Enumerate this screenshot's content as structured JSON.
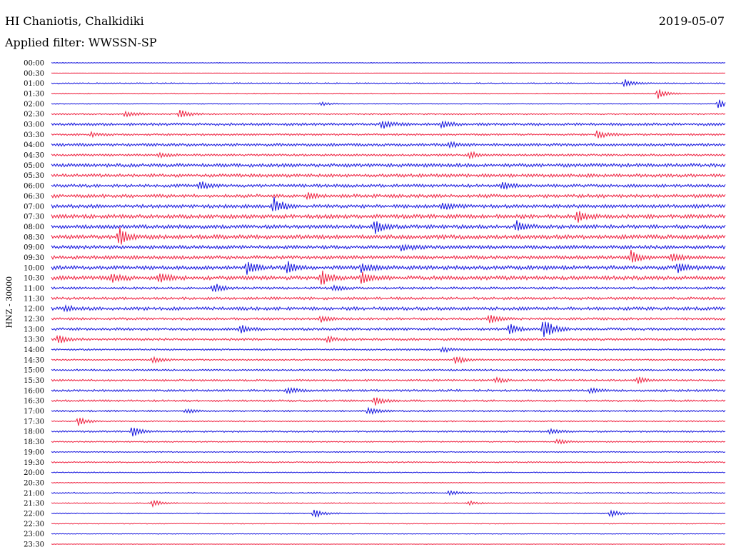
{
  "header": {
    "station": "HI Chaniotis, Chalkidiki",
    "date": "2019-05-07",
    "filter": "Applied filter: WWSSN-SP"
  },
  "chart_data": {
    "type": "line",
    "subtype": "helicorder",
    "ylabel": "HNZ - 30000",
    "row_labels": [
      "00:00",
      "00:30",
      "01:00",
      "01:30",
      "02:00",
      "02:30",
      "03:00",
      "03:30",
      "04:00",
      "04:30",
      "05:00",
      "05:30",
      "06:00",
      "06:30",
      "07:00",
      "07:30",
      "08:00",
      "08:30",
      "09:00",
      "09:30",
      "10:00",
      "10:30",
      "11:00",
      "11:30",
      "12:00",
      "12:30",
      "13:00",
      "13:30",
      "14:00",
      "14:30",
      "15:00",
      "15:30",
      "16:00",
      "16:30",
      "17:00",
      "17:30",
      "18:00",
      "18:30",
      "19:00",
      "19:30",
      "20:00",
      "20:30",
      "21:00",
      "21:30",
      "22:00",
      "22:30",
      "23:00",
      "23:30"
    ],
    "row_noise": [
      0.3,
      0.1,
      0.6,
      0.5,
      0.4,
      0.7,
      1.2,
      0.9,
      1.3,
      1.0,
      1.6,
      1.5,
      1.4,
      1.6,
      1.6,
      1.8,
      1.7,
      1.9,
      1.6,
      1.6,
      1.8,
      1.8,
      1.1,
      1.2,
      1.5,
      1.1,
      1.2,
      1.1,
      0.8,
      0.7,
      0.8,
      0.9,
      1.0,
      0.9,
      0.8,
      0.6,
      0.8,
      0.6,
      0.5,
      0.6,
      0.5,
      0.4,
      0.6,
      0.5,
      0.5,
      0.4,
      0.3,
      0.2
    ],
    "events": [
      {
        "row": 2,
        "t": 0.85,
        "amp": 6
      },
      {
        "row": 3,
        "t": 0.9,
        "amp": 7
      },
      {
        "row": 4,
        "t": 0.4,
        "amp": 3
      },
      {
        "row": 4,
        "t": 0.99,
        "amp": 6
      },
      {
        "row": 5,
        "t": 0.11,
        "amp": 5
      },
      {
        "row": 5,
        "t": 0.19,
        "amp": 6
      },
      {
        "row": 6,
        "t": 0.49,
        "amp": 7
      },
      {
        "row": 6,
        "t": 0.58,
        "amp": 5
      },
      {
        "row": 7,
        "t": 0.81,
        "amp": 7
      },
      {
        "row": 7,
        "t": 0.06,
        "amp": 3
      },
      {
        "row": 8,
        "t": 0.59,
        "amp": 4
      },
      {
        "row": 9,
        "t": 0.16,
        "amp": 3
      },
      {
        "row": 9,
        "t": 0.62,
        "amp": 5
      },
      {
        "row": 12,
        "t": 0.22,
        "amp": 6
      },
      {
        "row": 12,
        "t": 0.67,
        "amp": 6
      },
      {
        "row": 13,
        "t": 0.38,
        "amp": 4
      },
      {
        "row": 14,
        "t": 0.33,
        "amp": 12
      },
      {
        "row": 14,
        "t": 0.58,
        "amp": 5
      },
      {
        "row": 15,
        "t": 0.78,
        "amp": 9
      },
      {
        "row": 16,
        "t": 0.48,
        "amp": 10
      },
      {
        "row": 16,
        "t": 0.69,
        "amp": 8
      },
      {
        "row": 17,
        "t": 0.1,
        "amp": 13
      },
      {
        "row": 18,
        "t": 0.52,
        "amp": 5
      },
      {
        "row": 19,
        "t": 0.86,
        "amp": 9
      },
      {
        "row": 19,
        "t": 0.92,
        "amp": 6
      },
      {
        "row": 20,
        "t": 0.29,
        "amp": 9
      },
      {
        "row": 20,
        "t": 0.35,
        "amp": 8
      },
      {
        "row": 20,
        "t": 0.46,
        "amp": 7
      },
      {
        "row": 20,
        "t": 0.93,
        "amp": 6
      },
      {
        "row": 21,
        "t": 0.09,
        "amp": 7
      },
      {
        "row": 21,
        "t": 0.16,
        "amp": 8
      },
      {
        "row": 21,
        "t": 0.4,
        "amp": 10
      },
      {
        "row": 21,
        "t": 0.46,
        "amp": 8
      },
      {
        "row": 22,
        "t": 0.24,
        "amp": 7
      },
      {
        "row": 22,
        "t": 0.42,
        "amp": 4
      },
      {
        "row": 24,
        "t": 0.02,
        "amp": 4
      },
      {
        "row": 25,
        "t": 0.4,
        "amp": 4
      },
      {
        "row": 25,
        "t": 0.65,
        "amp": 6
      },
      {
        "row": 26,
        "t": 0.28,
        "amp": 6
      },
      {
        "row": 26,
        "t": 0.68,
        "amp": 7
      },
      {
        "row": 26,
        "t": 0.73,
        "amp": 16
      },
      {
        "row": 27,
        "t": 0.01,
        "amp": 6
      },
      {
        "row": 27,
        "t": 0.41,
        "amp": 4
      },
      {
        "row": 28,
        "t": 0.58,
        "amp": 4
      },
      {
        "row": 29,
        "t": 0.15,
        "amp": 5
      },
      {
        "row": 29,
        "t": 0.6,
        "amp": 6
      },
      {
        "row": 31,
        "t": 0.66,
        "amp": 4
      },
      {
        "row": 31,
        "t": 0.87,
        "amp": 5
      },
      {
        "row": 32,
        "t": 0.35,
        "amp": 5
      },
      {
        "row": 32,
        "t": 0.8,
        "amp": 4
      },
      {
        "row": 33,
        "t": 0.48,
        "amp": 6
      },
      {
        "row": 34,
        "t": 0.2,
        "amp": 3
      },
      {
        "row": 34,
        "t": 0.47,
        "amp": 5
      },
      {
        "row": 35,
        "t": 0.04,
        "amp": 6
      },
      {
        "row": 36,
        "t": 0.12,
        "amp": 7
      },
      {
        "row": 36,
        "t": 0.74,
        "amp": 4
      },
      {
        "row": 37,
        "t": 0.75,
        "amp": 4
      },
      {
        "row": 42,
        "t": 0.59,
        "amp": 4
      },
      {
        "row": 43,
        "t": 0.15,
        "amp": 5
      },
      {
        "row": 43,
        "t": 0.62,
        "amp": 3
      },
      {
        "row": 44,
        "t": 0.39,
        "amp": 6
      },
      {
        "row": 44,
        "t": 0.83,
        "amp": 5
      }
    ],
    "colors": {
      "odd_rows": "#1010dd",
      "even_rows": "#ee1d3c"
    }
  }
}
